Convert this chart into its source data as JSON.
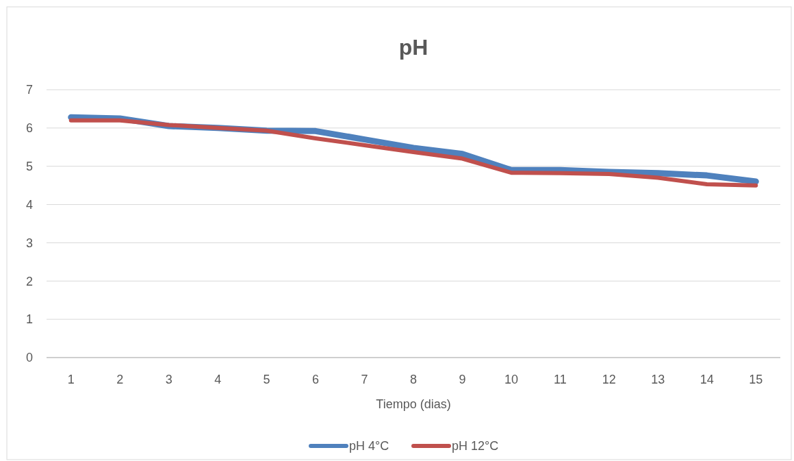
{
  "chart_data": {
    "type": "line",
    "title": "pH",
    "xlabel": "Tiempo (dias)",
    "categories": [
      "1",
      "2",
      "3",
      "4",
      "5",
      "6",
      "7",
      "8",
      "9",
      "10",
      "11",
      "12",
      "13",
      "14",
      "15"
    ],
    "series": [
      {
        "name": "pH 4°C",
        "color": "#4f81bd",
        "values": [
          6.28,
          6.25,
          6.05,
          6.0,
          5.93,
          5.92,
          5.7,
          5.48,
          5.32,
          4.9,
          4.9,
          4.85,
          4.82,
          4.76,
          4.6
        ]
      },
      {
        "name": "pH 12°C",
        "color": "#c0504d",
        "values": [
          6.2,
          6.2,
          6.08,
          6.0,
          5.93,
          5.73,
          5.55,
          5.37,
          5.2,
          4.83,
          4.82,
          4.8,
          4.7,
          4.53,
          4.5
        ]
      }
    ],
    "ylim": [
      0,
      7
    ],
    "yticks": [
      0,
      1,
      2,
      3,
      4,
      5,
      6,
      7
    ],
    "grid": "y",
    "legend": "bottom",
    "marker": "none",
    "line_style": "solid"
  }
}
